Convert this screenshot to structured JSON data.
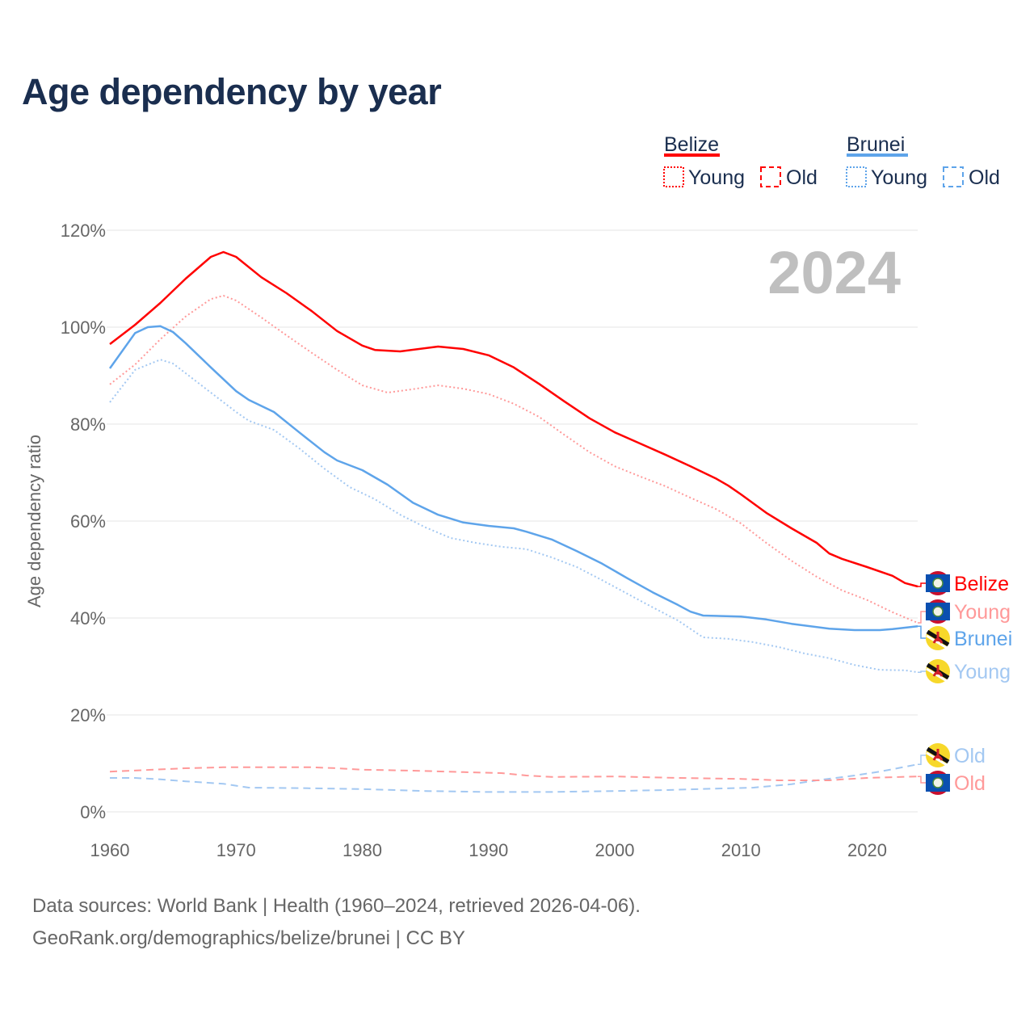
{
  "title": "Age dependency by year",
  "year_label": "2024",
  "legend": {
    "groups": [
      {
        "name": "Belize",
        "color": "#ff0000",
        "items": [
          "Young",
          "Old"
        ]
      },
      {
        "name": "Brunei",
        "color": "#5ea4ea",
        "items": [
          "Young",
          "Old"
        ]
      }
    ]
  },
  "footer": {
    "line1": "Data sources: World Bank | Health (1960–2024, retrieved 2026-04-06).",
    "line2": "GeoRank.org/demographics/belize/brunei | CC BY"
  },
  "chart_data": {
    "type": "line",
    "title": "Age dependency by year",
    "xlabel": "",
    "ylabel": "Age dependency ratio",
    "xlim": [
      1960,
      2024
    ],
    "ylim": [
      0,
      120
    ],
    "xticks": [
      "1960",
      "1970",
      "1980",
      "1990",
      "2000",
      "2010",
      "2020"
    ],
    "yticks": [
      "0%",
      "20%",
      "40%",
      "60%",
      "80%",
      "100%",
      "120%"
    ],
    "grid": true,
    "legend_position": "top-right",
    "series": [
      {
        "name": "Belize",
        "end_label": "Belize",
        "style": "solid",
        "color": "#ff0000",
        "flag": "belize",
        "points": [
          [
            1960,
            96.5
          ],
          [
            1962,
            100.5
          ],
          [
            1964,
            105
          ],
          [
            1966,
            110
          ],
          [
            1968,
            114.5
          ],
          [
            1969,
            115.5
          ],
          [
            1970,
            114.5
          ],
          [
            1972,
            110.3
          ],
          [
            1974,
            107
          ],
          [
            1976,
            103.3
          ],
          [
            1978,
            99.2
          ],
          [
            1980,
            96.2
          ],
          [
            1981,
            95.3
          ],
          [
            1983,
            95
          ],
          [
            1986,
            96
          ],
          [
            1988,
            95.5
          ],
          [
            1990,
            94.2
          ],
          [
            1992,
            91.7
          ],
          [
            1994,
            88.3
          ],
          [
            1996,
            84.7
          ],
          [
            1998,
            81.2
          ],
          [
            2000,
            78.3
          ],
          [
            2002,
            76
          ],
          [
            2004,
            73.7
          ],
          [
            2006,
            71.3
          ],
          [
            2008,
            68.8
          ],
          [
            2009,
            67.3
          ],
          [
            2010,
            65.5
          ],
          [
            2012,
            61.7
          ],
          [
            2014,
            58.5
          ],
          [
            2016,
            55.5
          ],
          [
            2017,
            53.3
          ],
          [
            2018,
            52.2
          ],
          [
            2020,
            50.5
          ],
          [
            2022,
            48.7
          ],
          [
            2023,
            47.2
          ],
          [
            2024,
            46.5
          ]
        ]
      },
      {
        "name": "Belize Young",
        "end_label": "Young",
        "style": "dotted",
        "color": "#ff9999",
        "flag": "belize",
        "points": [
          [
            1960,
            88.2
          ],
          [
            1962,
            92.3
          ],
          [
            1964,
            97.5
          ],
          [
            1966,
            102.2
          ],
          [
            1968,
            105.8
          ],
          [
            1969,
            106.5
          ],
          [
            1970,
            105.5
          ],
          [
            1972,
            102
          ],
          [
            1974,
            98.3
          ],
          [
            1976,
            94.7
          ],
          [
            1978,
            91.2
          ],
          [
            1980,
            88
          ],
          [
            1982,
            86.5
          ],
          [
            1984,
            87.2
          ],
          [
            1986,
            88
          ],
          [
            1988,
            87.3
          ],
          [
            1990,
            86.2
          ],
          [
            1992,
            84.2
          ],
          [
            1994,
            81.5
          ],
          [
            1996,
            77.8
          ],
          [
            1998,
            74.2
          ],
          [
            2000,
            71.3
          ],
          [
            2002,
            69.2
          ],
          [
            2004,
            67.2
          ],
          [
            2006,
            64.8
          ],
          [
            2008,
            62.5
          ],
          [
            2010,
            59.5
          ],
          [
            2012,
            55.5
          ],
          [
            2014,
            51.8
          ],
          [
            2016,
            48.5
          ],
          [
            2018,
            45.7
          ],
          [
            2020,
            43.7
          ],
          [
            2022,
            41.2
          ],
          [
            2024,
            39
          ]
        ]
      },
      {
        "name": "Brunei",
        "end_label": "Brunei",
        "style": "solid",
        "color": "#5ea4ea",
        "flag": "brunei",
        "points": [
          [
            1960,
            91.5
          ],
          [
            1962,
            98.8
          ],
          [
            1963,
            100
          ],
          [
            1964,
            100.2
          ],
          [
            1965,
            99
          ],
          [
            1966,
            96.7
          ],
          [
            1968,
            91.7
          ],
          [
            1970,
            86.8
          ],
          [
            1971,
            85
          ],
          [
            1973,
            82.5
          ],
          [
            1975,
            78.3
          ],
          [
            1977,
            74.2
          ],
          [
            1978,
            72.5
          ],
          [
            1980,
            70.5
          ],
          [
            1982,
            67.5
          ],
          [
            1984,
            63.8
          ],
          [
            1986,
            61.3
          ],
          [
            1988,
            59.7
          ],
          [
            1990,
            59
          ],
          [
            1992,
            58.5
          ],
          [
            1993,
            57.8
          ],
          [
            1995,
            56.2
          ],
          [
            1997,
            53.8
          ],
          [
            1999,
            51.2
          ],
          [
            2001,
            48.2
          ],
          [
            2003,
            45.3
          ],
          [
            2005,
            42.7
          ],
          [
            2006,
            41.3
          ],
          [
            2007,
            40.5
          ],
          [
            2010,
            40.3
          ],
          [
            2012,
            39.7
          ],
          [
            2014,
            38.8
          ],
          [
            2017,
            37.8
          ],
          [
            2019,
            37.5
          ],
          [
            2021,
            37.5
          ],
          [
            2022,
            37.7
          ],
          [
            2024,
            38.3
          ]
        ]
      },
      {
        "name": "Brunei Young",
        "end_label": "Young",
        "style": "dotted",
        "color": "#a3c8f2",
        "flag": "brunei",
        "points": [
          [
            1960,
            84.5
          ],
          [
            1962,
            91.2
          ],
          [
            1964,
            93.3
          ],
          [
            1965,
            92.5
          ],
          [
            1966,
            90.5
          ],
          [
            1968,
            86.5
          ],
          [
            1970,
            82.5
          ],
          [
            1971,
            80.7
          ],
          [
            1973,
            78.8
          ],
          [
            1975,
            75
          ],
          [
            1977,
            70.8
          ],
          [
            1979,
            67
          ],
          [
            1981,
            64.5
          ],
          [
            1983,
            61.3
          ],
          [
            1985,
            58.7
          ],
          [
            1987,
            56.5
          ],
          [
            1989,
            55.5
          ],
          [
            1991,
            54.7
          ],
          [
            1993,
            54.2
          ],
          [
            1995,
            52.5
          ],
          [
            1997,
            50.5
          ],
          [
            1999,
            47.8
          ],
          [
            2001,
            45
          ],
          [
            2003,
            42.2
          ],
          [
            2005,
            39.5
          ],
          [
            2007,
            36
          ],
          [
            2009,
            35.7
          ],
          [
            2011,
            35
          ],
          [
            2013,
            34
          ],
          [
            2015,
            32.7
          ],
          [
            2017,
            31.7
          ],
          [
            2019,
            30.3
          ],
          [
            2021,
            29.3
          ],
          [
            2023,
            29.2
          ],
          [
            2024,
            28.8
          ]
        ]
      },
      {
        "name": "Brunei Old",
        "end_label": "Old",
        "style": "dashed",
        "color": "#a3c8f2",
        "flag": "brunei",
        "points": [
          [
            1960,
            7
          ],
          [
            1962,
            7
          ],
          [
            1964,
            6.7
          ],
          [
            1966,
            6.3
          ],
          [
            1969,
            5.8
          ],
          [
            1971,
            5
          ],
          [
            1975,
            4.9
          ],
          [
            1980,
            4.7
          ],
          [
            1985,
            4.3
          ],
          [
            1990,
            4.1
          ],
          [
            1995,
            4.1
          ],
          [
            2000,
            4.3
          ],
          [
            2004,
            4.5
          ],
          [
            2008,
            4.8
          ],
          [
            2011,
            5
          ],
          [
            2014,
            5.7
          ],
          [
            2016,
            6.5
          ],
          [
            2019,
            7.5
          ],
          [
            2021,
            8.3
          ],
          [
            2023,
            9.3
          ],
          [
            2024,
            9.8
          ]
        ]
      },
      {
        "name": "Belize Old",
        "end_label": "Old",
        "style": "dashed",
        "color": "#ff9999",
        "flag": "belize",
        "points": [
          [
            1960,
            8.3
          ],
          [
            1966,
            9
          ],
          [
            1969,
            9.2
          ],
          [
            1976,
            9.2
          ],
          [
            1978,
            9
          ],
          [
            1980,
            8.7
          ],
          [
            1984,
            8.5
          ],
          [
            1988,
            8.2
          ],
          [
            1991,
            8
          ],
          [
            1993,
            7.5
          ],
          [
            1995,
            7.2
          ],
          [
            2000,
            7.3
          ],
          [
            2005,
            7
          ],
          [
            2010,
            6.8
          ],
          [
            2013,
            6.5
          ],
          [
            2017,
            6.5
          ],
          [
            2018,
            6.7
          ],
          [
            2020,
            7
          ],
          [
            2024,
            7.3
          ]
        ]
      }
    ]
  }
}
